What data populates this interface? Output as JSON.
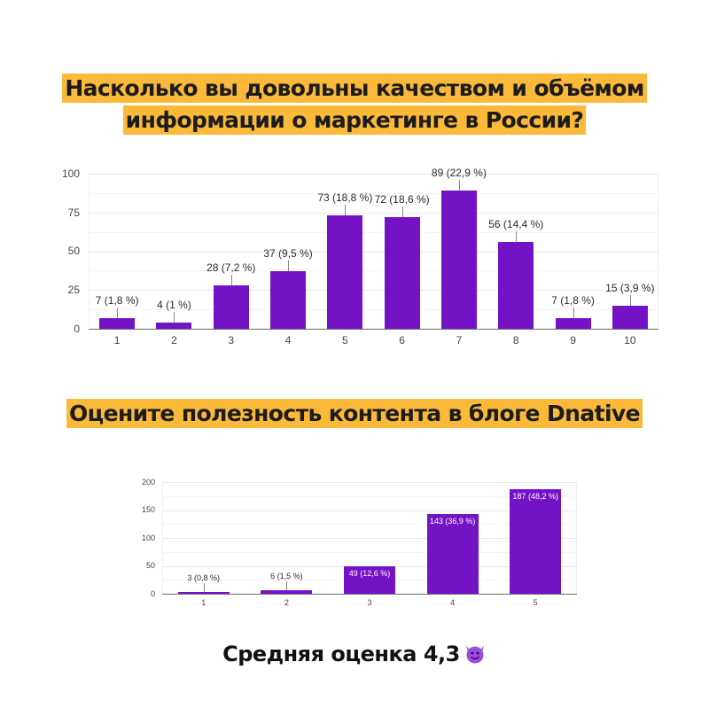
{
  "title1": "Насколько вы довольны качеством и объёмом информации о маркетинге в России?",
  "title1_lines": [
    "Насколько вы довольны качеством и объёмом",
    "информации о маркетинге в России?"
  ],
  "title2": "Оцените полезность контента в блоге Dnative",
  "average": {
    "text": "Средняя оценка 4,3",
    "icon": "smiling-devil-emoji"
  },
  "colors": {
    "bar": "#7413c6",
    "highlight": "#fbb93a",
    "text": "#1c1c1c"
  },
  "chart_data": [
    {
      "type": "bar",
      "title": "Насколько вы довольны качеством и объёмом информации о маркетинге в России?",
      "xlabel": "",
      "ylabel": "",
      "categories": [
        "1",
        "2",
        "3",
        "4",
        "5",
        "6",
        "7",
        "8",
        "9",
        "10"
      ],
      "values": [
        7,
        4,
        28,
        37,
        73,
        72,
        89,
        56,
        7,
        15
      ],
      "labels": [
        "7 (1,8 %)",
        "4 (1 %)",
        "28 (7,2 %)",
        "37 (9,5 %)",
        "73 (18,8 %)",
        "72 (18,6 %)",
        "89 (22,9 %)",
        "56 (14,4 %)",
        "7 (1,8 %)",
        "15 (3,9 %)"
      ],
      "percentages": [
        1.8,
        1,
        7.2,
        9.5,
        18.8,
        18.6,
        22.9,
        14.4,
        1.8,
        3.9
      ],
      "yticks": [
        "0",
        "25",
        "50",
        "75",
        "100"
      ],
      "ylim": [
        0,
        100
      ],
      "grid": true,
      "legend": null
    },
    {
      "type": "bar",
      "title": "Оцените полезность контента в блоге Dnative",
      "xlabel": "",
      "ylabel": "",
      "categories": [
        "1",
        "2",
        "3",
        "4",
        "5"
      ],
      "values": [
        3,
        6,
        49,
        143,
        187
      ],
      "labels": [
        "3 (0,8 %)",
        "6 (1,5 %)",
        "49 (12,6 %)",
        "143 (36,9 %)",
        "187 (48,2 %)"
      ],
      "percentages": [
        0.8,
        1.5,
        12.6,
        36.9,
        48.2
      ],
      "yticks": [
        "0",
        "50",
        "100",
        "150",
        "200"
      ],
      "ylim": [
        0,
        200
      ],
      "grid": true,
      "legend": null
    }
  ]
}
